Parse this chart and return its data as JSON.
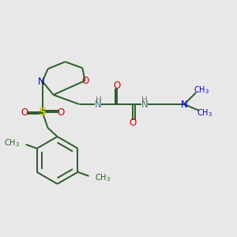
{
  "background_color": "#e8e8e8",
  "figsize": [
    3.0,
    3.0
  ],
  "dpi": 100,
  "bond_color": "#2d5a2d",
  "bond_lw": 1.4,
  "atom_colors": {
    "O": "#cc0000",
    "N": "#0000cc",
    "S": "#cccc00",
    "NH": "#558888",
    "C": "#2d5a2d"
  }
}
